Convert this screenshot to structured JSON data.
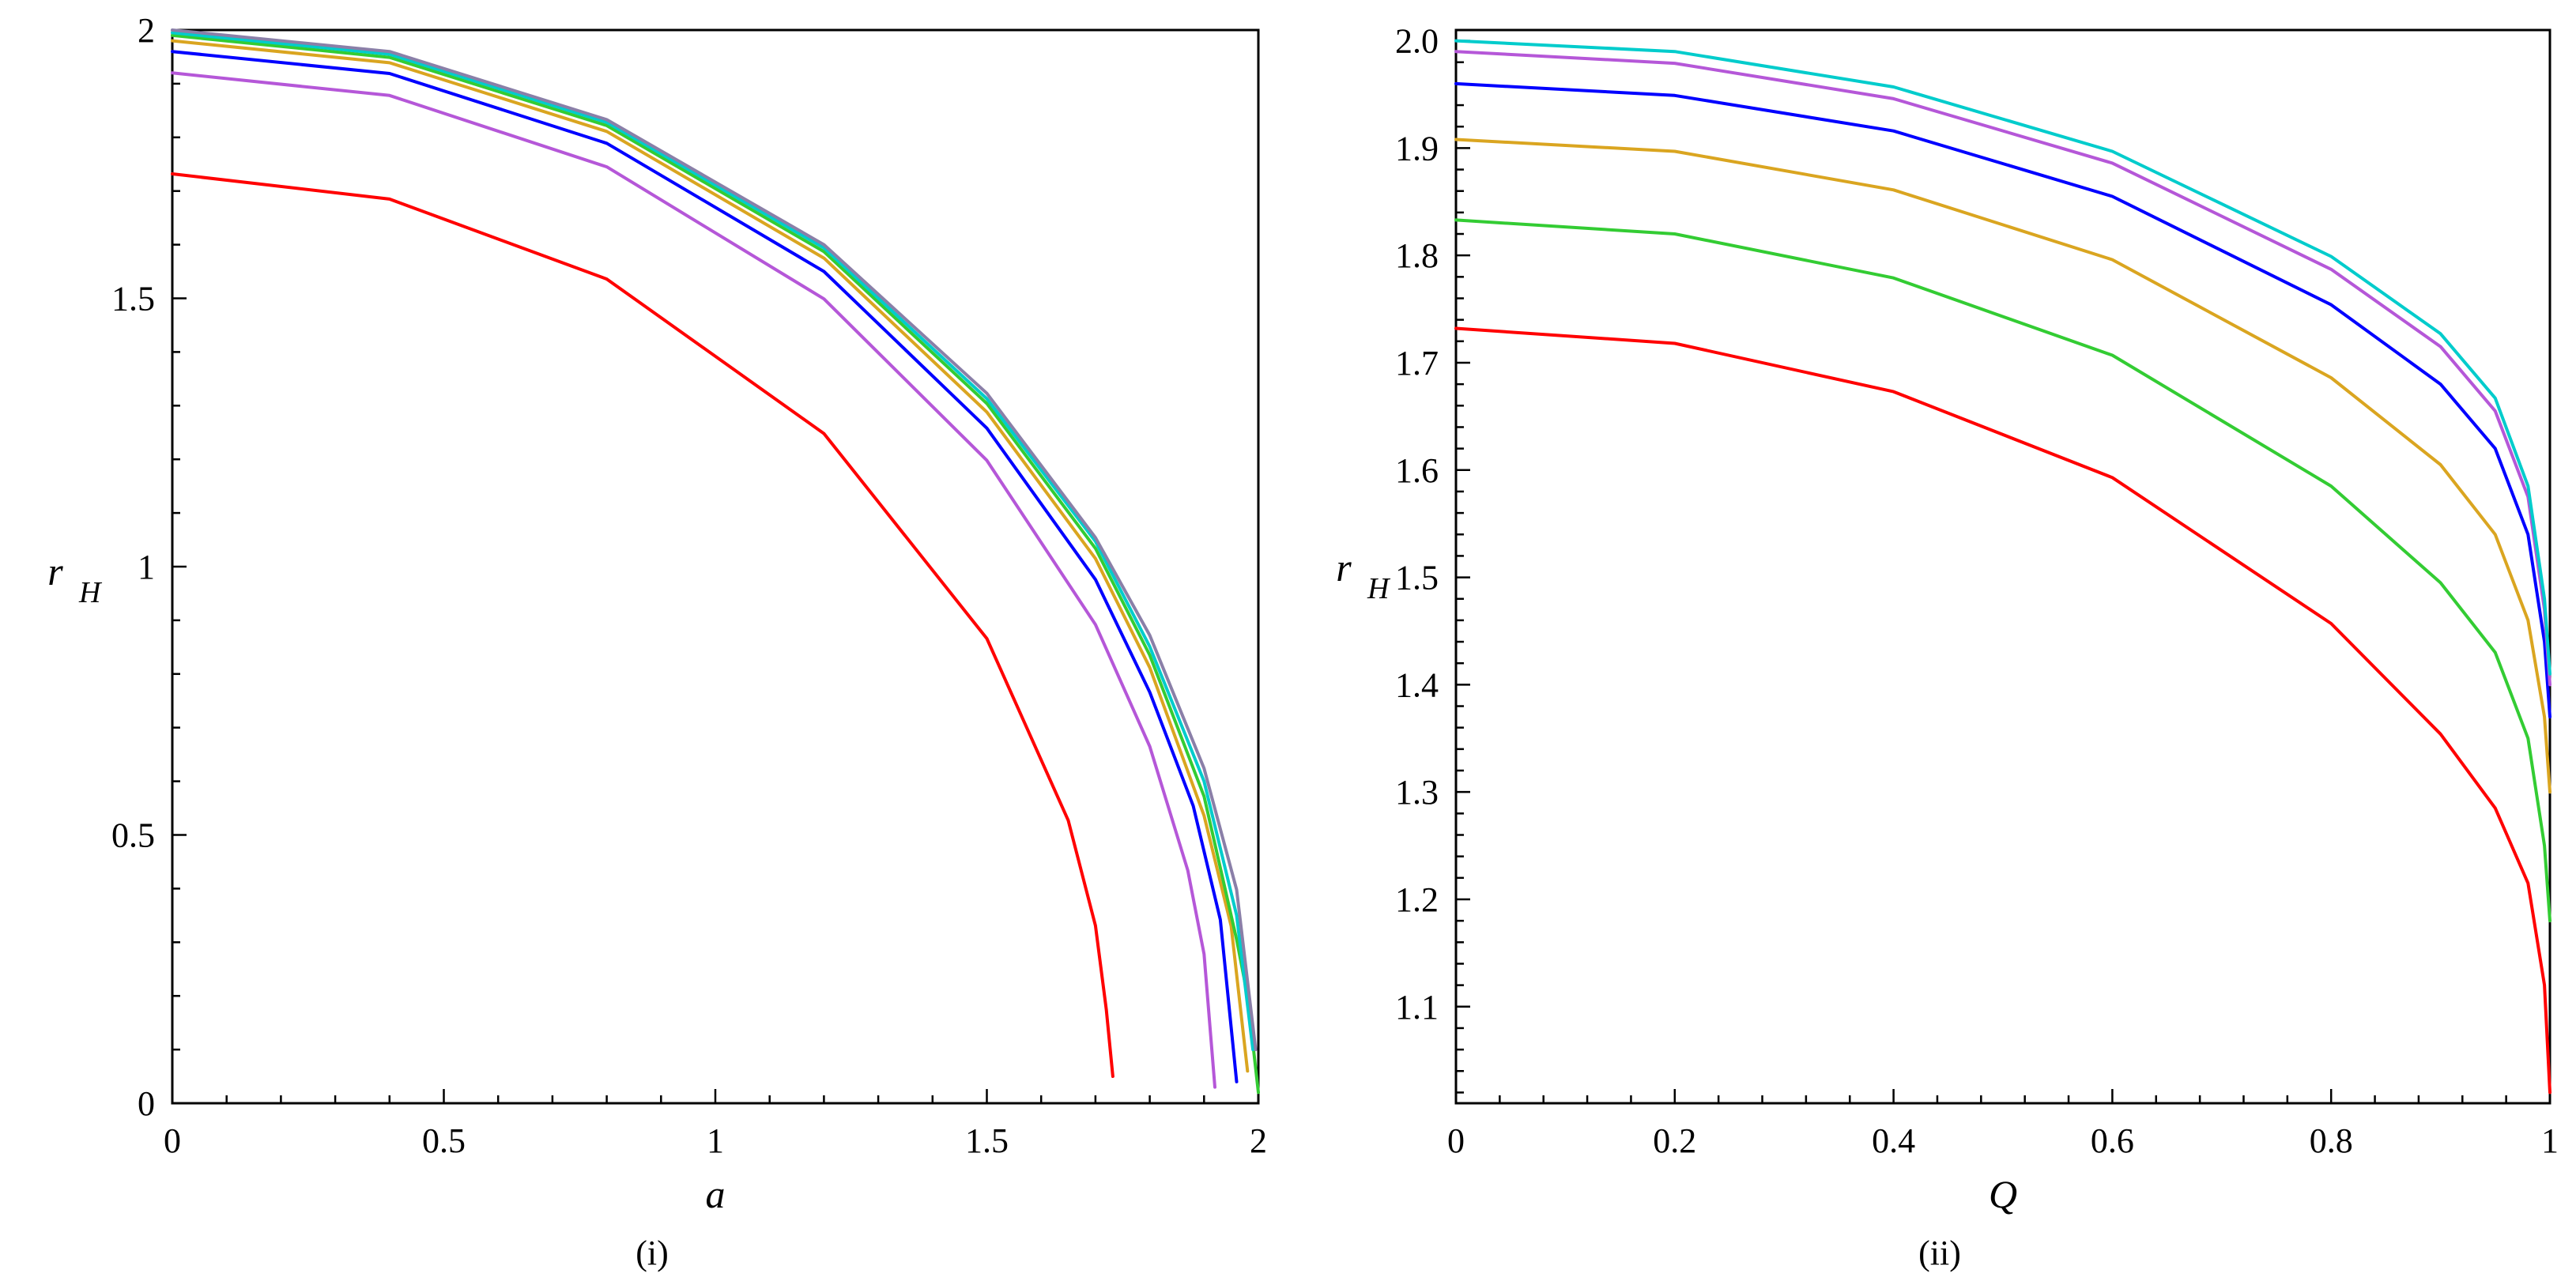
{
  "chart_data": [
    {
      "type": "line",
      "panel_label": "(i)",
      "xlabel": "a",
      "ylabel": "r",
      "ylabel_sub": "H",
      "xlim": [
        0,
        2
      ],
      "ylim": [
        0,
        2
      ],
      "x_ticks": [
        0,
        0.5,
        1,
        1.5,
        2
      ],
      "x_tick_labels": [
        "0",
        "0.5",
        "1",
        "1.5",
        "2"
      ],
      "y_ticks": [
        0,
        0.5,
        1,
        1.5,
        2
      ],
      "y_tick_labels": [
        "0",
        "0.5",
        "1",
        "1.5",
        "2"
      ],
      "grid": false,
      "legend": "none",
      "series": [
        {
          "color": "#ff0000",
          "points": [
            [
              0,
              1.732
            ],
            [
              0.4,
              1.685
            ],
            [
              0.8,
              1.536
            ],
            [
              1.2,
              1.248
            ],
            [
              1.5,
              0.866
            ],
            [
              1.65,
              0.527
            ],
            [
              1.7,
              0.331
            ],
            [
              1.72,
              0.175
            ],
            [
              1.732,
              0.05
            ]
          ]
        },
        {
          "color": "#b557d8",
          "points": [
            [
              0,
              1.92
            ],
            [
              0.4,
              1.878
            ],
            [
              0.8,
              1.745
            ],
            [
              1.2,
              1.499
            ],
            [
              1.5,
              1.198
            ],
            [
              1.7,
              0.892
            ],
            [
              1.8,
              0.665
            ],
            [
              1.87,
              0.434
            ],
            [
              1.9,
              0.278
            ],
            [
              1.92,
              0.03
            ]
          ]
        },
        {
          "color": "#0000ff",
          "points": [
            [
              0,
              1.96
            ],
            [
              0.4,
              1.919
            ],
            [
              0.8,
              1.789
            ],
            [
              1.2,
              1.55
            ],
            [
              1.5,
              1.258
            ],
            [
              1.7,
              0.976
            ],
            [
              1.8,
              0.766
            ],
            [
              1.88,
              0.554
            ],
            [
              1.93,
              0.342
            ],
            [
              1.96,
              0.04
            ]
          ]
        },
        {
          "color": "#daa520",
          "points": [
            [
              0,
              1.98
            ],
            [
              0.4,
              1.939
            ],
            [
              0.8,
              1.811
            ],
            [
              1.2,
              1.575
            ],
            [
              1.5,
              1.288
            ],
            [
              1.7,
              1.015
            ],
            [
              1.8,
              0.812
            ],
            [
              1.9,
              0.536
            ],
            [
              1.95,
              0.33
            ],
            [
              1.98,
              0.06
            ]
          ]
        },
        {
          "color": "#33cc33",
          "points": [
            [
              0,
              1.99
            ],
            [
              0.4,
              1.949
            ],
            [
              0.8,
              1.822
            ],
            [
              1.2,
              1.587
            ],
            [
              1.5,
              1.304
            ],
            [
              1.7,
              1.034
            ],
            [
              1.8,
              0.835
            ],
            [
              1.9,
              0.572
            ],
            [
              1.96,
              0.305
            ],
            [
              1.98,
              0.2
            ],
            [
              2.0,
              0.02
            ]
          ]
        },
        {
          "color": "#00cccc",
          "points": [
            [
              0,
              1.995
            ],
            [
              0.4,
              1.955
            ],
            [
              0.8,
              1.828
            ],
            [
              1.2,
              1.594
            ],
            [
              1.5,
              1.313
            ],
            [
              1.7,
              1.047
            ],
            [
              1.8,
              0.851
            ],
            [
              1.9,
              0.6
            ],
            [
              1.96,
              0.35
            ],
            [
              1.99,
              0.1
            ]
          ]
        },
        {
          "color": "#8a7fa8",
          "points": [
            [
              0,
              2.0
            ],
            [
              0.4,
              1.96
            ],
            [
              0.8,
              1.833
            ],
            [
              1.2,
              1.6
            ],
            [
              1.5,
              1.323
            ],
            [
              1.7,
              1.054
            ],
            [
              1.8,
              0.872
            ],
            [
              1.9,
              0.624
            ],
            [
              1.96,
              0.398
            ],
            [
              1.995,
              0.1
            ]
          ]
        }
      ]
    },
    {
      "type": "line",
      "panel_label": "(ii)",
      "xlabel": "Q",
      "ylabel": "r",
      "ylabel_sub": "H",
      "xlim": [
        0,
        1
      ],
      "ylim": [
        1.01,
        2.01
      ],
      "x_ticks": [
        0,
        0.2,
        0.4,
        0.6,
        0.8,
        1
      ],
      "x_tick_labels": [
        "0",
        "0.2",
        "0.4",
        "0.6",
        "0.8",
        "1"
      ],
      "y_ticks": [
        1.1,
        1.2,
        1.3,
        1.4,
        1.5,
        1.6,
        1.7,
        1.8,
        1.9,
        2.0
      ],
      "y_tick_labels": [
        "1.1",
        "1.2",
        "1.3",
        "1.4",
        "1.5",
        "1.6",
        "1.7",
        "1.8",
        "1.9",
        "2.0"
      ],
      "grid": false,
      "legend": "none",
      "series": [
        {
          "color": "#ff0000",
          "points": [
            [
              0,
              1.732
            ],
            [
              0.2,
              1.718
            ],
            [
              0.4,
              1.673
            ],
            [
              0.6,
              1.593
            ],
            [
              0.8,
              1.457
            ],
            [
              0.9,
              1.354
            ],
            [
              0.95,
              1.285
            ],
            [
              0.98,
              1.215
            ],
            [
              0.995,
              1.12
            ],
            [
              1.0,
              1.02
            ]
          ]
        },
        {
          "color": "#33cc33",
          "points": [
            [
              0,
              1.833
            ],
            [
              0.2,
              1.82
            ],
            [
              0.4,
              1.779
            ],
            [
              0.6,
              1.707
            ],
            [
              0.8,
              1.585
            ],
            [
              0.9,
              1.495
            ],
            [
              0.95,
              1.43
            ],
            [
              0.98,
              1.35
            ],
            [
              0.995,
              1.25
            ],
            [
              1.0,
              1.18
            ]
          ]
        },
        {
          "color": "#daa520",
          "points": [
            [
              0,
              1.908
            ],
            [
              0.2,
              1.897
            ],
            [
              0.4,
              1.861
            ],
            [
              0.6,
              1.796
            ],
            [
              0.8,
              1.686
            ],
            [
              0.9,
              1.605
            ],
            [
              0.95,
              1.54
            ],
            [
              0.98,
              1.46
            ],
            [
              0.995,
              1.37
            ],
            [
              1.0,
              1.3
            ]
          ]
        },
        {
          "color": "#0000ff",
          "points": [
            [
              0,
              1.96
            ],
            [
              0.2,
              1.949
            ],
            [
              0.4,
              1.916
            ],
            [
              0.6,
              1.855
            ],
            [
              0.8,
              1.754
            ],
            [
              0.9,
              1.68
            ],
            [
              0.95,
              1.62
            ],
            [
              0.98,
              1.54
            ],
            [
              0.995,
              1.44
            ],
            [
              1.0,
              1.37
            ]
          ]
        },
        {
          "color": "#b557d8",
          "points": [
            [
              0,
              1.99
            ],
            [
              0.2,
              1.979
            ],
            [
              0.4,
              1.946
            ],
            [
              0.6,
              1.886
            ],
            [
              0.8,
              1.787
            ],
            [
              0.9,
              1.715
            ],
            [
              0.95,
              1.655
            ],
            [
              0.98,
              1.575
            ],
            [
              0.995,
              1.47
            ],
            [
              1.0,
              1.4
            ]
          ]
        },
        {
          "color": "#00cccc",
          "points": [
            [
              0,
              2.0
            ],
            [
              0.2,
              1.99
            ],
            [
              0.4,
              1.957
            ],
            [
              0.6,
              1.897
            ],
            [
              0.8,
              1.799
            ],
            [
              0.9,
              1.727
            ],
            [
              0.95,
              1.667
            ],
            [
              0.98,
              1.585
            ],
            [
              0.995,
              1.48
            ],
            [
              1.0,
              1.41
            ]
          ]
        }
      ]
    }
  ]
}
